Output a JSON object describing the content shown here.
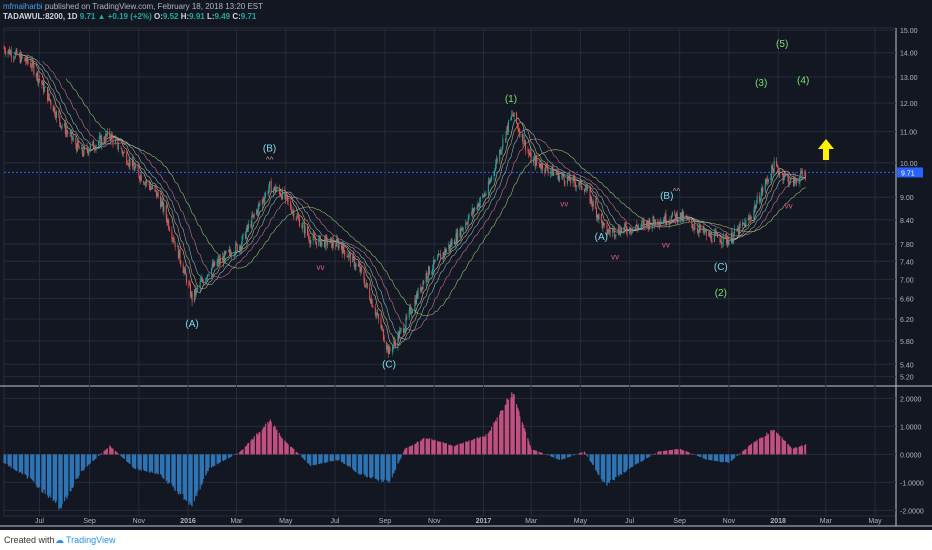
{
  "header": {
    "author": "mfmalharbi",
    "published_text": "published on TradingView.com, February 18, 2018 13:20 EST",
    "symbol": "TADAWUL:8200, 1D",
    "last": "9.71",
    "change": "+0.19 (+2%)",
    "open_label": "O:",
    "open": "9.52",
    "high_label": "H:",
    "high": "9.91",
    "low_label": "L:",
    "low": "9.49",
    "close_label": "C:",
    "close": "9.71"
  },
  "footer": {
    "created_with": "Created with",
    "brand": "TradingView"
  },
  "colors": {
    "background": "#131722",
    "grid": "#252b3a",
    "up_candle": "#26a69a",
    "down_candle": "#ef5350",
    "wave_cyan": "#7fdbea",
    "wave_green": "#7ee070",
    "arrow": "#fff200",
    "pivot_high": "#c8a39b",
    "pivot_low": "#e05a8a",
    "hist_pos": "#c2507e",
    "hist_neg": "#2f74b5",
    "price_line": "#2962ff"
  },
  "chart_data": {
    "type": "candlestick",
    "price_axis": {
      "ticks": [
        "15.00",
        "14.00",
        "13.00",
        "12.00",
        "11.00",
        "10.00",
        "9.71",
        "9.00",
        "8.40",
        "7.80",
        "7.40",
        "7.00",
        "6.60",
        "6.20",
        "5.80",
        "5.40",
        "5.20"
      ],
      "current": "9.71"
    },
    "time_axis": {
      "ticks": [
        "Jul",
        "Sep",
        "Nov",
        "2016",
        "Mar",
        "May",
        "Jul",
        "Sep",
        "Nov",
        "2017",
        "Mar",
        "May",
        "Jul",
        "Sep",
        "Nov",
        "2018",
        "Mar",
        "May"
      ]
    },
    "price_path": [
      [
        "2015-06-01",
        14.2
      ],
      [
        "2015-07-05",
        13.5
      ],
      [
        "2015-08-10",
        11.3
      ],
      [
        "2015-09-05",
        10.3
      ],
      [
        "2015-10-10",
        10.9
      ],
      [
        "2015-11-10",
        9.8
      ],
      [
        "2015-12-10",
        9.0
      ],
      [
        "2016-01-20",
        6.6
      ],
      [
        "2016-02-10",
        7.2
      ],
      [
        "2016-03-20",
        7.8
      ],
      [
        "2016-04-25",
        9.3
      ],
      [
        "2016-05-10",
        9.1
      ],
      [
        "2016-06-15",
        7.9
      ],
      [
        "2016-07-20",
        7.8
      ],
      [
        "2016-08-15",
        7.2
      ],
      [
        "2016-09-20",
        5.6
      ],
      [
        "2016-10-10",
        6.1
      ],
      [
        "2016-11-05",
        7.1
      ],
      [
        "2016-12-10",
        7.9
      ],
      [
        "2017-01-20",
        9.2
      ],
      [
        "2017-02-20",
        11.6
      ],
      [
        "2017-03-15",
        10.1
      ],
      [
        "2017-04-20",
        9.6
      ],
      [
        "2017-05-20",
        9.3
      ],
      [
        "2017-06-15",
        8.1
      ],
      [
        "2017-07-20",
        8.2
      ],
      [
        "2017-08-20",
        8.4
      ],
      [
        "2017-09-15",
        8.5
      ],
      [
        "2017-10-20",
        8.0
      ],
      [
        "2017-11-15",
        7.9
      ],
      [
        "2017-12-10",
        8.4
      ],
      [
        "2018-01-10",
        9.9
      ],
      [
        "2018-02-01",
        9.4
      ],
      [
        "2018-02-18",
        9.71
      ]
    ],
    "wave_labels": [
      {
        "text": "(A)",
        "date": "2016-01-20",
        "y": 6.05,
        "color": "cyan"
      },
      {
        "text": "(B)",
        "date": "2016-04-25",
        "y": 10.35,
        "color": "cyan"
      },
      {
        "text": "(C)",
        "date": "2016-09-20",
        "y": 5.35,
        "color": "cyan"
      },
      {
        "text": "(1)",
        "date": "2017-02-18",
        "y": 12.05,
        "color": "green"
      },
      {
        "text": "(A)",
        "date": "2017-06-10",
        "y": 7.9,
        "color": "cyan"
      },
      {
        "text": "(B)",
        "date": "2017-08-30",
        "y": 8.95,
        "color": "cyan"
      },
      {
        "text": "(C)",
        "date": "2017-11-05",
        "y": 7.2,
        "color": "cyan"
      },
      {
        "text": "(2)",
        "date": "2017-11-05",
        "y": 6.65,
        "color": "green"
      },
      {
        "text": "(3)",
        "date": "2017-12-25",
        "y": 12.65,
        "color": "green"
      },
      {
        "text": "(5)",
        "date": "2018-01-20",
        "y": 14.25,
        "color": "green"
      },
      {
        "text": "(4)",
        "date": "2018-02-15",
        "y": 12.75,
        "color": "green"
      }
    ],
    "oscillator": {
      "ticks": [
        "2.0000",
        "1.0000",
        "0.0000",
        "-1.0000",
        "-2.0000"
      ],
      "ylim": [
        -2.2,
        2.3
      ],
      "path": [
        [
          "2015-06-01",
          -0.3
        ],
        [
          "2015-07-05",
          -0.9
        ],
        [
          "2015-08-10",
          -1.9
        ],
        [
          "2015-09-05",
          -0.6
        ],
        [
          "2015-10-10",
          0.3
        ],
        [
          "2015-11-10",
          -0.5
        ],
        [
          "2015-12-10",
          -0.7
        ],
        [
          "2016-01-20",
          -1.8
        ],
        [
          "2016-02-10",
          -0.5
        ],
        [
          "2016-03-20",
          0.1
        ],
        [
          "2016-04-25",
          1.2
        ],
        [
          "2016-05-10",
          0.6
        ],
        [
          "2016-06-15",
          -0.4
        ],
        [
          "2016-07-20",
          -0.2
        ],
        [
          "2016-08-15",
          -0.7
        ],
        [
          "2016-09-20",
          -1.0
        ],
        [
          "2016-10-10",
          0.2
        ],
        [
          "2016-11-05",
          0.6
        ],
        [
          "2016-12-10",
          0.3
        ],
        [
          "2017-01-20",
          0.7
        ],
        [
          "2017-02-20",
          2.2
        ],
        [
          "2017-03-15",
          0.2
        ],
        [
          "2017-04-20",
          -0.2
        ],
        [
          "2017-05-20",
          0.1
        ],
        [
          "2017-06-15",
          -1.1
        ],
        [
          "2017-07-20",
          -0.4
        ],
        [
          "2017-08-20",
          0.1
        ],
        [
          "2017-09-15",
          0.2
        ],
        [
          "2017-10-20",
          -0.2
        ],
        [
          "2017-11-15",
          -0.3
        ],
        [
          "2017-12-10",
          0.3
        ],
        [
          "2018-01-10",
          0.9
        ],
        [
          "2018-02-01",
          0.2
        ],
        [
          "2018-02-18",
          0.35
        ]
      ]
    }
  }
}
